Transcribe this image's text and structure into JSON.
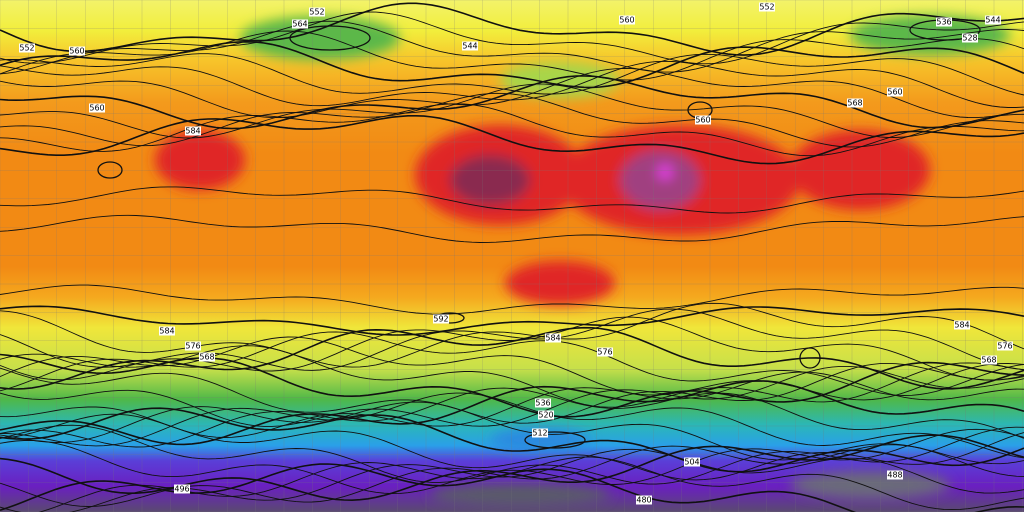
{
  "contour_labels": [
    "552",
    "564",
    "560",
    "544",
    "552",
    "536",
    "528",
    "544",
    "552",
    "560",
    "560",
    "584",
    "568",
    "560",
    "560",
    "592",
    "584",
    "584",
    "584",
    "576",
    "568",
    "576",
    "568",
    "576",
    "512",
    "504",
    "496",
    "488",
    "480",
    "520",
    "536"
  ]
}
